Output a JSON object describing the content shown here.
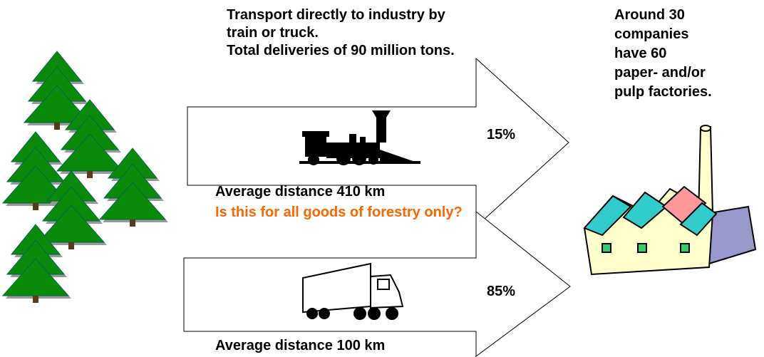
{
  "top_text": {
    "lines": [
      "Transport directly to industry by",
      "train or truck.",
      "Total deliveries of 90 million tons."
    ]
  },
  "right_text": {
    "lines": [
      "Around 30",
      "companies",
      "have 60",
      "paper- and/or",
      "pulp factories."
    ]
  },
  "train_arrow": {
    "share": "15%",
    "caption": "Average distance 410 km"
  },
  "question": "Is this for all goods of forestry only?",
  "truck_arrow": {
    "share": "85%",
    "caption": "Average distance 100 km"
  }
}
